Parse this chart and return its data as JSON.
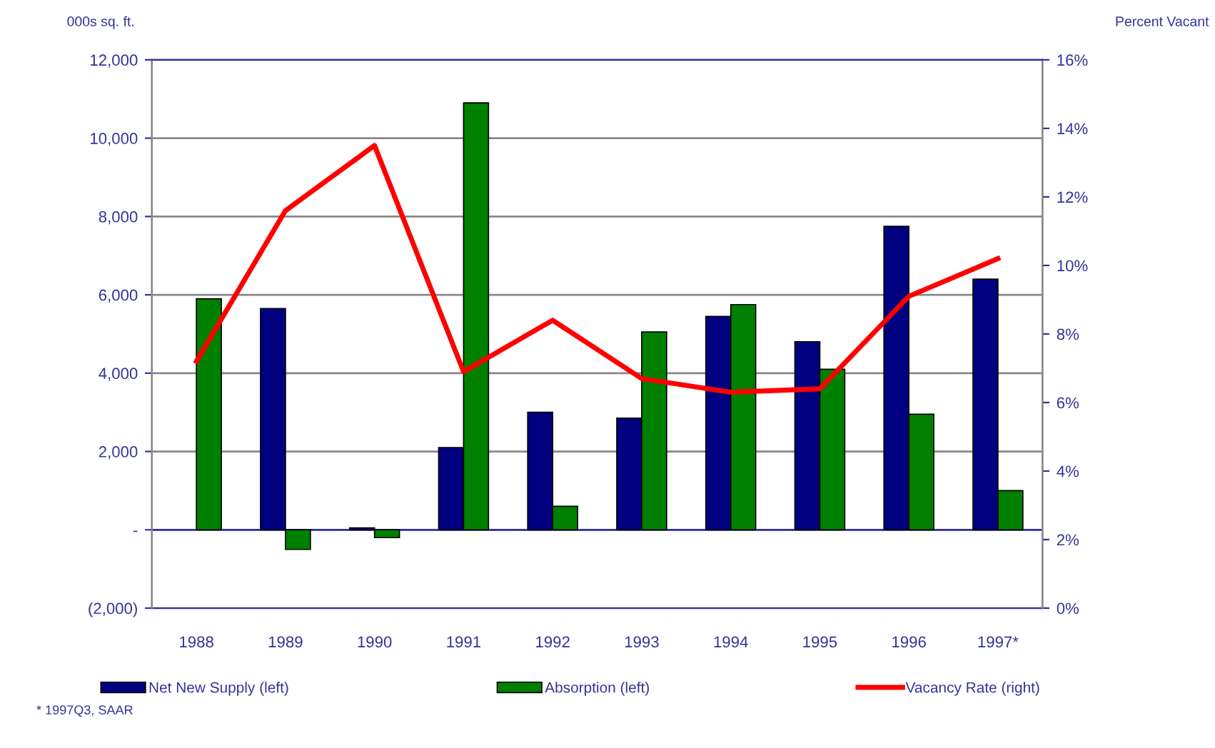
{
  "chart_data": {
    "type": "bar",
    "ylabel": "000s sq. ft.",
    "y2label": "Percent Vacant",
    "categories": [
      "1988",
      "1989",
      "1990",
      "1991",
      "1992",
      "1993",
      "1994",
      "1995",
      "1996",
      "1997*"
    ],
    "series": [
      {
        "name": "Net New Supply (left)",
        "color": "#000080",
        "values": [
          null,
          5650,
          50,
          2100,
          3000,
          2850,
          5450,
          4800,
          7750,
          6400
        ]
      },
      {
        "name": "Absorption (left)",
        "color": "#008000",
        "values": [
          5900,
          -500,
          -200,
          10900,
          600,
          5050,
          5750,
          4100,
          2950,
          1000
        ]
      },
      {
        "name": "Vacancy Rate (right)",
        "type": "line",
        "axis": "y2",
        "color": "#ff0000",
        "values": [
          7.2,
          11.6,
          13.5,
          6.9,
          8.4,
          6.7,
          6.3,
          6.4,
          9.1,
          10.2
        ]
      }
    ],
    "ylim": [
      -2000,
      12000
    ],
    "yticks": [
      {
        "value": -2000,
        "label": "(2,000)"
      },
      {
        "value": 0,
        "label": "-"
      },
      {
        "value": 2000,
        "label": "2,000"
      },
      {
        "value": 4000,
        "label": "4,000"
      },
      {
        "value": 6000,
        "label": "6,000"
      },
      {
        "value": 8000,
        "label": "8,000"
      },
      {
        "value": 10000,
        "label": "10,000"
      },
      {
        "value": 12000,
        "label": "12,000"
      }
    ],
    "y2lim": [
      0,
      16
    ],
    "y2ticks": [
      {
        "value": 0,
        "label": "0%"
      },
      {
        "value": 2,
        "label": "2%"
      },
      {
        "value": 4,
        "label": "4%"
      },
      {
        "value": 6,
        "label": "6%"
      },
      {
        "value": 8,
        "label": "8%"
      },
      {
        "value": 10,
        "label": "10%"
      },
      {
        "value": 12,
        "label": "12%"
      },
      {
        "value": 14,
        "label": "14%"
      },
      {
        "value": 16,
        "label": "16%"
      }
    ],
    "grid": "y",
    "legend": "bottom",
    "ref_lines": [
      {
        "axis": "y",
        "value": 0,
        "color": "#333399"
      }
    ],
    "annotations": [
      "* 1997Q3, SAAR"
    ]
  }
}
